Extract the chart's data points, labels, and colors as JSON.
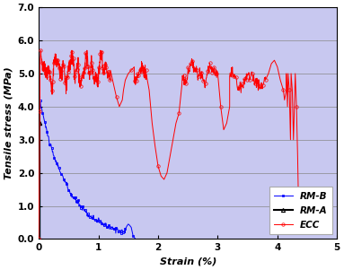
{
  "title": "",
  "xlabel": "Strain (%)",
  "ylabel": "Tensile stress (MPa)",
  "xlim": [
    0,
    5
  ],
  "ylim": [
    0.0,
    7.0
  ],
  "yticks": [
    0.0,
    1.0,
    2.0,
    3.0,
    4.0,
    5.0,
    6.0,
    7.0
  ],
  "xticks": [
    0,
    1,
    2,
    3,
    4,
    5
  ],
  "background_color": "#c8c8f0",
  "ecc_color": "red",
  "rma_color": "black",
  "rmb_color": "blue"
}
